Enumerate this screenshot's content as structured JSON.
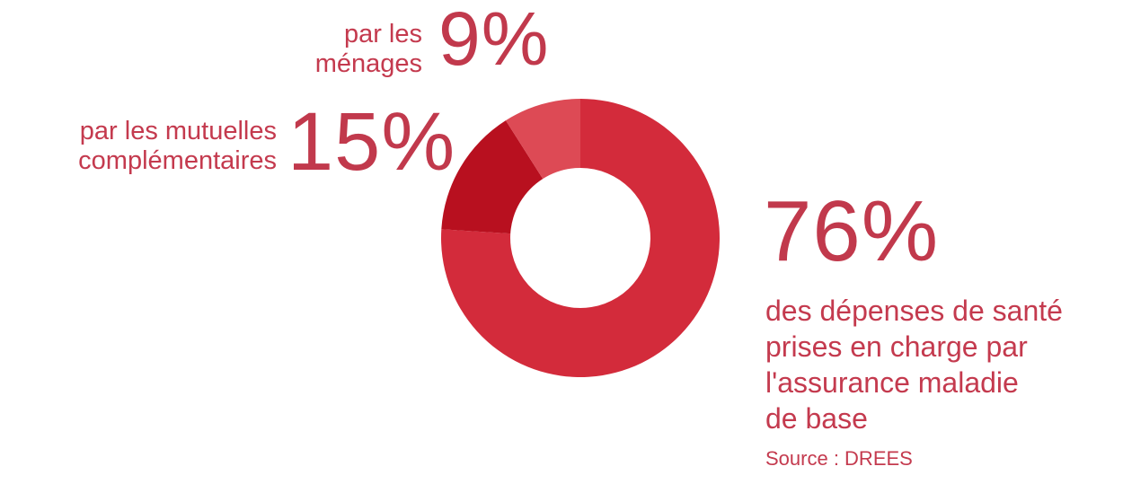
{
  "chart_data": {
    "type": "pie",
    "donut": true,
    "slices": [
      {
        "label": "des dépenses de santé prises en charge par l'assurance maladie de base",
        "value": 76,
        "display": "76%",
        "color": "#d32b3b"
      },
      {
        "label": "par les mutuelles complémentaires",
        "value": 15,
        "display": "15%",
        "color": "#b8101f"
      },
      {
        "label": "par les ménages",
        "value": 9,
        "display": "9%",
        "color": "#dd4a55"
      }
    ]
  },
  "labels": {
    "menages_text": "par les\nménages",
    "menages_value": "9%",
    "mutuelles_text": "par les mutuelles\ncomplémentaires",
    "mutuelles_value": "15%",
    "assurance_value": "76%",
    "assurance_text": "des dépenses de santé\nprises en charge par\nl'assurance maladie\nde base"
  },
  "source": "Source : DREES"
}
